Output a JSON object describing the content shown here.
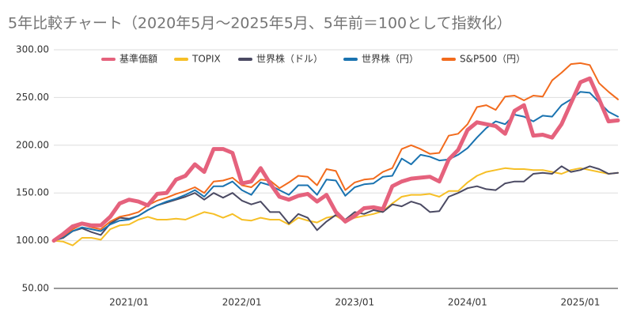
{
  "chart_data": {
    "type": "line",
    "title": "5年比較チャート（2020年5月〜2025年5月、5年前＝100として指数化）",
    "x": [
      "2020/05",
      "2020/06",
      "2020/07",
      "2020/08",
      "2020/09",
      "2020/10",
      "2020/11",
      "2020/12",
      "2021/01",
      "2021/02",
      "2021/03",
      "2021/04",
      "2021/05",
      "2021/06",
      "2021/07",
      "2021/08",
      "2021/09",
      "2021/10",
      "2021/11",
      "2021/12",
      "2022/01",
      "2022/02",
      "2022/03",
      "2022/04",
      "2022/05",
      "2022/06",
      "2022/07",
      "2022/08",
      "2022/09",
      "2022/10",
      "2022/11",
      "2022/12",
      "2023/01",
      "2023/02",
      "2023/03",
      "2023/04",
      "2023/05",
      "2023/06",
      "2023/07",
      "2023/08",
      "2023/09",
      "2023/10",
      "2023/11",
      "2023/12",
      "2024/01",
      "2024/02",
      "2024/03",
      "2024/04",
      "2024/05",
      "2024/06",
      "2024/07",
      "2024/08",
      "2024/09",
      "2024/10",
      "2024/11",
      "2024/12",
      "2025/01",
      "2025/02",
      "2025/03",
      "2025/04",
      "2025/05"
    ],
    "xticks": [
      "2021/01",
      "2022/01",
      "2023/01",
      "2024/01",
      "2025/01"
    ],
    "ylim": [
      50,
      300
    ],
    "yticks": [
      {
        "value": 50,
        "label": "50.00"
      },
      {
        "value": 100,
        "label": "100.00"
      },
      {
        "value": 150,
        "label": "150.00"
      },
      {
        "value": 200,
        "label": "200.00"
      },
      {
        "value": 250,
        "label": "250.00"
      },
      {
        "value": 300,
        "label": "300.00"
      }
    ],
    "grid": true,
    "legend": "top",
    "series": [
      {
        "name": "基準価額",
        "color": "#e5627d",
        "values": [
          100,
          107,
          115,
          118,
          116,
          116,
          125,
          139,
          143,
          141,
          137,
          149,
          150,
          164,
          168,
          180,
          172,
          196,
          196,
          192,
          160,
          162,
          176,
          160,
          146,
          143,
          147,
          149,
          141,
          148,
          130,
          120,
          126,
          134,
          135,
          133,
          157,
          162,
          165,
          166,
          167,
          162,
          185,
          195,
          216,
          224,
          222,
          220,
          212,
          236,
          242,
          210,
          211,
          208,
          222,
          244,
          266,
          270,
          248,
          225,
          226
        ]
      },
      {
        "name": "TOPIX",
        "color": "#f6bf26",
        "values": [
          100,
          99,
          95,
          103,
          103,
          101,
          112,
          116,
          117,
          122,
          125,
          122,
          122,
          123,
          122,
          126,
          130,
          128,
          124,
          128,
          122,
          121,
          124,
          122,
          122,
          117,
          124,
          121,
          119,
          124,
          126,
          120,
          124,
          126,
          128,
          131,
          139,
          146,
          148,
          148,
          149,
          146,
          152,
          152,
          161,
          168,
          172,
          174,
          176,
          175,
          175,
          174,
          174,
          172,
          170,
          174,
          176,
          174,
          172,
          170,
          171
        ]
      },
      {
        "name": "世界株（ドル）",
        "color": "#4b4a63",
        "values": [
          100,
          103,
          110,
          113,
          109,
          106,
          118,
          124,
          123,
          126,
          132,
          137,
          140,
          143,
          146,
          150,
          143,
          150,
          145,
          150,
          142,
          138,
          141,
          130,
          130,
          118,
          128,
          124,
          111,
          120,
          127,
          122,
          130,
          128,
          132,
          130,
          138,
          136,
          141,
          138,
          130,
          131,
          146,
          150,
          155,
          157,
          154,
          153,
          160,
          162,
          162,
          170,
          171,
          170,
          178,
          172,
          174,
          178,
          175,
          170,
          171
        ]
      },
      {
        "name": "世界株（円）",
        "color": "#1a73b0",
        "values": [
          100,
          104,
          110,
          114,
          112,
          110,
          117,
          121,
          122,
          126,
          132,
          137,
          141,
          144,
          148,
          153,
          146,
          157,
          157,
          162,
          153,
          148,
          161,
          158,
          153,
          148,
          158,
          158,
          148,
          164,
          163,
          147,
          156,
          159,
          160,
          167,
          168,
          186,
          180,
          190,
          188,
          184,
          185,
          190,
          197,
          208,
          218,
          225,
          222,
          232,
          230,
          225,
          231,
          230,
          242,
          248,
          256,
          255,
          245,
          235,
          230
        ]
      },
      {
        "name": "S&P500（円）",
        "color": "#f26b1d",
        "values": [
          100,
          105,
          112,
          117,
          114,
          112,
          120,
          125,
          127,
          130,
          137,
          142,
          145,
          149,
          152,
          156,
          150,
          162,
          163,
          166,
          158,
          156,
          164,
          163,
          155,
          161,
          168,
          167,
          158,
          175,
          173,
          153,
          161,
          164,
          165,
          172,
          176,
          196,
          200,
          196,
          191,
          192,
          210,
          212,
          222,
          240,
          242,
          237,
          251,
          252,
          247,
          252,
          251,
          268,
          276,
          285,
          286,
          284,
          265,
          256,
          248
        ]
      }
    ]
  }
}
